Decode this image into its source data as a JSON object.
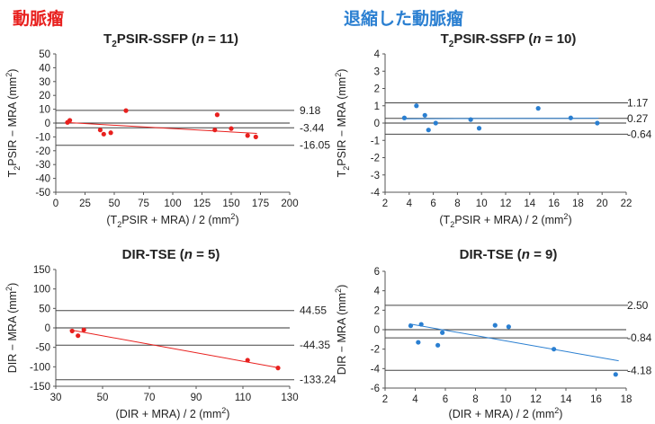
{
  "sections": [
    {
      "label": "動脈瘤",
      "color": "#e8201e"
    },
    {
      "label": "退縮した動脈瘤",
      "color": "#2a7fd1"
    }
  ],
  "chart_data": [
    {
      "type": "scatter",
      "title_main": "T",
      "title_sub": "2",
      "title_rest": "PSIR-SSFP (",
      "title_n": "n",
      "title_tail": " = 11)",
      "color": "#e8201e",
      "xlabel_parts": [
        "(T",
        "2",
        "PSIR + MRA) / 2 (mm",
        "2",
        ")"
      ],
      "ylabel_parts": [
        "T",
        "2",
        "PSIR − MRA (mm",
        "2",
        ")"
      ],
      "xlim": [
        0,
        200
      ],
      "ylim": [
        -50,
        50
      ],
      "xticks": [
        "0",
        "25",
        "50",
        "75",
        "100",
        "125",
        "150",
        "175",
        "200"
      ],
      "yticks": [
        "50",
        "40",
        "30",
        "20",
        "10",
        "0",
        "-10",
        "-20",
        "-30",
        "-40",
        "-50"
      ],
      "points": [
        {
          "x": 10,
          "y": 0.5
        },
        {
          "x": 12,
          "y": 2
        },
        {
          "x": 38,
          "y": -5
        },
        {
          "x": 41,
          "y": -8
        },
        {
          "x": 47,
          "y": -7
        },
        {
          "x": 60,
          "y": 9
        },
        {
          "x": 138,
          "y": 6
        },
        {
          "x": 136,
          "y": -5
        },
        {
          "x": 150,
          "y": -4
        },
        {
          "x": 164,
          "y": -9
        },
        {
          "x": 171,
          "y": -10
        }
      ],
      "reference_lines": [
        {
          "y": 9.18,
          "label": "9.18"
        },
        {
          "y": -3.44,
          "label": "-3.44"
        },
        {
          "y": -16.05,
          "label": "-16.05"
        }
      ],
      "regression": {
        "x": [
          8,
          172
        ],
        "y": [
          0.5,
          -7.5
        ]
      }
    },
    {
      "type": "scatter",
      "title_main": "T",
      "title_sub": "2",
      "title_rest": "PSIR-SSFP (",
      "title_n": "n",
      "title_tail": " = 10)",
      "color": "#2a7fd1",
      "xlabel_parts": [
        "(T",
        "2",
        "PSIR + MRA) / 2 (mm",
        "2",
        ")"
      ],
      "ylabel_parts": [
        "T",
        "2",
        "PSIR − MRA (mm",
        "2",
        ")"
      ],
      "xlim": [
        2,
        22
      ],
      "ylim": [
        -4,
        4
      ],
      "xticks": [
        "2",
        "4",
        "6",
        "8",
        "10",
        "12",
        "14",
        "16",
        "18",
        "20",
        "22"
      ],
      "yticks": [
        "4",
        "3",
        "2",
        "1",
        "0",
        "-1",
        "-2",
        "-3",
        "-4"
      ],
      "points": [
        {
          "x": 3.6,
          "y": 0.3
        },
        {
          "x": 4.6,
          "y": 1.0
        },
        {
          "x": 5.3,
          "y": 0.45
        },
        {
          "x": 5.6,
          "y": -0.4
        },
        {
          "x": 6.2,
          "y": 0.0
        },
        {
          "x": 9.1,
          "y": 0.2
        },
        {
          "x": 9.8,
          "y": -0.3
        },
        {
          "x": 14.7,
          "y": 0.85
        },
        {
          "x": 17.4,
          "y": 0.3
        },
        {
          "x": 19.6,
          "y": 0.0
        }
      ],
      "reference_lines": [
        {
          "y": 1.17,
          "label": "1.17"
        },
        {
          "y": 0.27,
          "label": "0.27"
        },
        {
          "y": -0.64,
          "label": "-0.64"
        }
      ],
      "regression": {
        "x": [
          3.5,
          19.7
        ],
        "y": [
          0.25,
          0.28
        ]
      }
    },
    {
      "type": "scatter",
      "title_main": "DIR-TSE (",
      "title_sub": "",
      "title_rest": "",
      "title_n": "n",
      "title_tail": " = 5)",
      "color": "#e8201e",
      "xlabel_parts": [
        "(DIR + MRA) / 2 (mm",
        "",
        "",
        "2",
        ")"
      ],
      "ylabel_parts": [
        "DIR − MRA (mm",
        "",
        "",
        "2",
        ")"
      ],
      "xlim": [
        30,
        130
      ],
      "ylim": [
        -150,
        150
      ],
      "xticks": [
        "30",
        "50",
        "70",
        "90",
        "110",
        "130"
      ],
      "yticks": [
        "150",
        "100",
        "50",
        "0",
        "-50",
        "-100",
        "-150"
      ],
      "points": [
        {
          "x": 37,
          "y": -8
        },
        {
          "x": 39.5,
          "y": -20
        },
        {
          "x": 42,
          "y": -5
        },
        {
          "x": 112,
          "y": -83
        },
        {
          "x": 125,
          "y": -103
        }
      ],
      "reference_lines": [
        {
          "y": 44.55,
          "label": "44.55"
        },
        {
          "y": -44.35,
          "label": "-44.35"
        },
        {
          "y": -133.24,
          "label": "-133.24"
        }
      ],
      "regression": {
        "x": [
          36,
          125
        ],
        "y": [
          -5,
          -102
        ]
      }
    },
    {
      "type": "scatter",
      "title_main": "DIR-TSE (",
      "title_sub": "",
      "title_rest": "",
      "title_n": "n",
      "title_tail": " = 9)",
      "color": "#2a7fd1",
      "xlabel_parts": [
        "(DIR + MRA) / 2 (mm",
        "",
        "",
        "2",
        ")"
      ],
      "ylabel_parts": [
        "DIR − MRA (mm",
        "",
        "",
        "2",
        ")"
      ],
      "xlim": [
        2,
        18
      ],
      "ylim": [
        -6,
        6
      ],
      "xticks": [
        "2",
        "4",
        "6",
        "8",
        "10",
        "12",
        "14",
        "16",
        "18"
      ],
      "yticks": [
        "6",
        "4",
        "2",
        "0",
        "-2",
        "-4",
        "-6"
      ],
      "points": [
        {
          "x": 3.7,
          "y": 0.4
        },
        {
          "x": 4.2,
          "y": -1.3
        },
        {
          "x": 4.4,
          "y": 0.55
        },
        {
          "x": 5.5,
          "y": -1.6
        },
        {
          "x": 5.8,
          "y": -0.3
        },
        {
          "x": 9.3,
          "y": 0.45
        },
        {
          "x": 10.2,
          "y": 0.3
        },
        {
          "x": 13.2,
          "y": -2.0
        },
        {
          "x": 17.3,
          "y": -4.6
        }
      ],
      "reference_lines": [
        {
          "y": 2.5,
          "label": "2.50"
        },
        {
          "y": -0.84,
          "label": "-0.84"
        },
        {
          "y": -4.18,
          "label": "-4.18"
        }
      ],
      "regression": {
        "x": [
          3.6,
          17.5
        ],
        "y": [
          0.6,
          -3.2
        ]
      }
    }
  ]
}
